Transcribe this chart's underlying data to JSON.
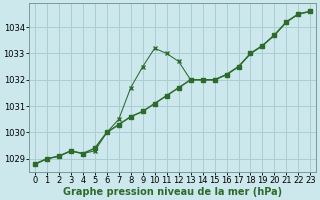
{
  "xlabel": "Graphe pression niveau de la mer (hPa)",
  "bg_color": "#cce8ec",
  "grid_color": "#aacdd4",
  "line_color": "#2d6b2d",
  "x_hours": [
    0,
    1,
    2,
    3,
    4,
    5,
    6,
    7,
    8,
    9,
    10,
    11,
    12,
    13,
    14,
    15,
    16,
    17,
    18,
    19,
    20,
    21,
    22,
    23
  ],
  "y_linear": [
    1028.8,
    1029.0,
    1029.1,
    1029.3,
    1029.2,
    1029.4,
    1030.0,
    1030.3,
    1030.6,
    1030.8,
    1031.1,
    1031.4,
    1031.7,
    1032.0,
    1032.0,
    1032.0,
    1032.2,
    1032.5,
    1033.0,
    1033.3,
    1033.7,
    1034.2,
    1034.5,
    1034.6
  ],
  "y_hump": [
    1028.8,
    1029.0,
    1029.1,
    1029.3,
    1029.2,
    1029.3,
    1030.0,
    1030.5,
    1031.7,
    1032.5,
    1033.2,
    1033.0,
    1032.7,
    1032.0,
    1032.0,
    1032.0,
    1032.2,
    1032.5,
    1033.0,
    1033.3,
    1033.7,
    1034.2,
    1034.5,
    1034.6
  ],
  "ylim": [
    1028.5,
    1034.9
  ],
  "yticks": [
    1029,
    1030,
    1031,
    1032,
    1033,
    1034
  ],
  "xticks": [
    0,
    1,
    2,
    3,
    4,
    5,
    6,
    7,
    8,
    9,
    10,
    11,
    12,
    13,
    14,
    15,
    16,
    17,
    18,
    19,
    20,
    21,
    22,
    23
  ],
  "xlabel_fontsize": 7.0,
  "tick_fontsize": 6.0
}
